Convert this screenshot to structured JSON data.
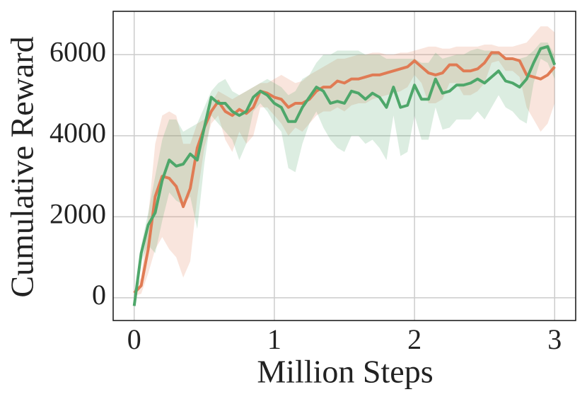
{
  "chart_data": {
    "type": "line",
    "xlabel": "Million Steps",
    "ylabel": "Cumulative Reward",
    "xlim": [
      -0.15,
      3.15
    ],
    "ylim": [
      -560,
      7070
    ],
    "xticks": [
      0,
      1,
      2,
      3
    ],
    "yticks": [
      0,
      2000,
      4000,
      6000
    ],
    "grid": true,
    "x": [
      0,
      0.05,
      0.1,
      0.15,
      0.2,
      0.25,
      0.3,
      0.35,
      0.4,
      0.45,
      0.5,
      0.55,
      0.6,
      0.65,
      0.7,
      0.75,
      0.8,
      0.85,
      0.9,
      0.95,
      1.0,
      1.05,
      1.1,
      1.15,
      1.2,
      1.25,
      1.3,
      1.35,
      1.4,
      1.45,
      1.5,
      1.55,
      1.6,
      1.65,
      1.7,
      1.75,
      1.8,
      1.85,
      1.9,
      1.95,
      2.0,
      2.05,
      2.1,
      2.15,
      2.2,
      2.25,
      2.3,
      2.35,
      2.4,
      2.45,
      2.5,
      2.55,
      2.6,
      2.65,
      2.7,
      2.75,
      2.8,
      2.85,
      2.9,
      2.95,
      3.0
    ],
    "series": [
      {
        "color": "#e07b54",
        "values": [
          120,
          300,
          1200,
          2500,
          3000,
          2950,
          2750,
          2250,
          2700,
          3700,
          4200,
          4600,
          4850,
          4600,
          4500,
          4650,
          4550,
          4700,
          5100,
          5050,
          4950,
          4900,
          4700,
          4800,
          4800,
          4900,
          5100,
          5200,
          5200,
          5350,
          5300,
          5400,
          5400,
          5450,
          5500,
          5500,
          5550,
          5600,
          5650,
          5700,
          5850,
          5700,
          5550,
          5500,
          5550,
          5750,
          5750,
          5600,
          5600,
          5650,
          5800,
          6050,
          6050,
          5900,
          5900,
          5850,
          5500,
          5450,
          5400,
          5500,
          5700
        ],
        "lower": [
          50,
          100,
          600,
          1200,
          1500,
          1200,
          1000,
          500,
          900,
          2500,
          3700,
          4300,
          4500,
          3900,
          3600,
          4100,
          3800,
          4000,
          4700,
          4700,
          4500,
          4300,
          4000,
          4200,
          4100,
          4300,
          4500,
          4600,
          4600,
          4700,
          4600,
          4750,
          4800,
          4800,
          4900,
          4950,
          5000,
          5050,
          5100,
          5200,
          5500,
          5300,
          4800,
          4800,
          4900,
          5300,
          5300,
          5000,
          5000,
          5100,
          5300,
          5800,
          5850,
          5600,
          5600,
          5450,
          4700,
          4400,
          4100,
          4300,
          4800
        ],
        "upper": [
          200,
          500,
          2000,
          3800,
          4500,
          4600,
          4500,
          3800,
          3800,
          4300,
          4400,
          4800,
          5100,
          5000,
          4900,
          5000,
          5100,
          5200,
          5300,
          5300,
          5400,
          5500,
          5400,
          5300,
          5350,
          5500,
          5600,
          5700,
          5800,
          5900,
          5900,
          5950,
          6000,
          6000,
          6050,
          6050,
          6000,
          6000,
          6050,
          6050,
          6100,
          6150,
          6200,
          6200,
          6150,
          6150,
          6200,
          6200,
          6200,
          6200,
          6250,
          6250,
          6200,
          6200,
          6200,
          6250,
          6300,
          6500,
          6700,
          6700,
          6550
        ]
      },
      {
        "color": "#4ea76a",
        "values": [
          -200,
          1100,
          1800,
          2100,
          2900,
          3400,
          3250,
          3300,
          3550,
          3400,
          4200,
          4950,
          4800,
          4800,
          4600,
          4500,
          4600,
          4950,
          5100,
          5000,
          4800,
          4700,
          4350,
          4350,
          4700,
          4950,
          5200,
          5100,
          4800,
          4850,
          4800,
          5100,
          5050,
          4900,
          5050,
          4950,
          4700,
          5200,
          4700,
          4750,
          5250,
          4900,
          4900,
          5400,
          5050,
          5100,
          5250,
          5250,
          5300,
          5400,
          5300,
          5450,
          5600,
          5350,
          5300,
          5200,
          5400,
          5800,
          6150,
          6200,
          5750
        ],
        "lower": [
          -250,
          900,
          1300,
          1100,
          1900,
          2600,
          2400,
          2300,
          2500,
          1700,
          3300,
          4500,
          4300,
          4100,
          3900,
          3400,
          3800,
          4600,
          4800,
          4600,
          4300,
          4100,
          3200,
          3100,
          3800,
          4300,
          4600,
          4200,
          3900,
          3700,
          3600,
          4000,
          4000,
          3800,
          3900,
          3700,
          3400,
          4500,
          3500,
          3600,
          4500,
          3900,
          3900,
          4700,
          4150,
          4200,
          4400,
          4400,
          4400,
          4600,
          4400,
          4700,
          5000,
          4700,
          4600,
          4400,
          4300,
          5300,
          5900,
          5800,
          5400
        ],
        "upper": [
          -150,
          1300,
          2100,
          3000,
          3900,
          4400,
          4400,
          4100,
          4200,
          4300,
          4700,
          5100,
          5300,
          5400,
          5100,
          5000,
          5100,
          5200,
          5300,
          5400,
          5300,
          5200,
          5000,
          5100,
          5400,
          5500,
          5800,
          6000,
          6000,
          6100,
          6100,
          6100,
          6100,
          6000,
          6000,
          6000,
          5900,
          5900,
          5900,
          5900,
          5900,
          5800,
          5800,
          6050,
          5900,
          5950,
          6000,
          6000,
          6100,
          6150,
          6100,
          6100,
          6050,
          5900,
          5900,
          5900,
          5950,
          6100,
          6300,
          6300,
          6000
        ]
      }
    ]
  }
}
